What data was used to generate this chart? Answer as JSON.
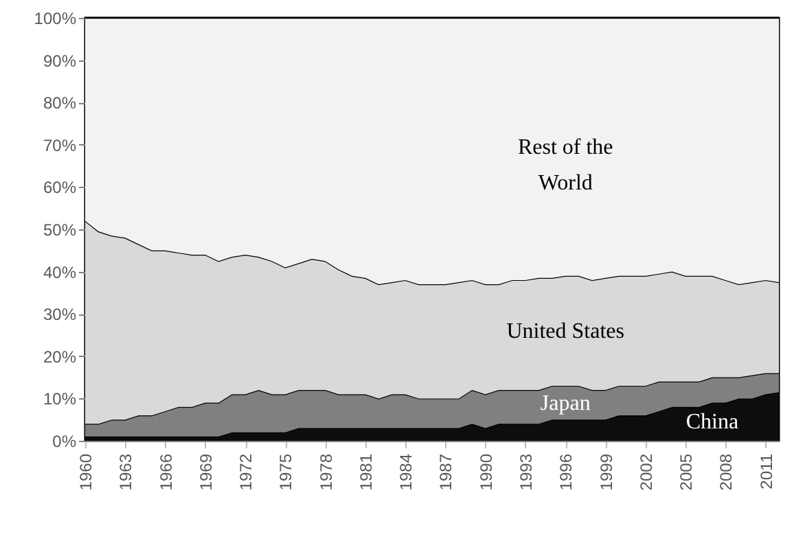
{
  "chart_data": {
    "type": "area",
    "stacked": true,
    "x": [
      1960,
      1961,
      1962,
      1963,
      1964,
      1965,
      1966,
      1967,
      1968,
      1969,
      1970,
      1971,
      1972,
      1973,
      1974,
      1975,
      1976,
      1977,
      1978,
      1979,
      1980,
      1981,
      1982,
      1983,
      1984,
      1985,
      1986,
      1987,
      1988,
      1989,
      1990,
      1991,
      1992,
      1993,
      1994,
      1995,
      1996,
      1997,
      1998,
      1999,
      2000,
      2001,
      2002,
      2003,
      2004,
      2005,
      2006,
      2007,
      2008,
      2009,
      2010,
      2011,
      2012
    ],
    "series": [
      {
        "name": "China",
        "color": "#0d0d0d",
        "values": [
          1,
          1,
          1,
          1,
          1,
          1,
          1,
          1,
          1,
          1,
          1,
          2,
          2,
          2,
          2,
          2,
          3,
          3,
          3,
          3,
          3,
          3,
          3,
          3,
          3,
          3,
          3,
          3,
          3,
          4,
          3,
          4,
          4,
          4,
          4,
          5,
          5,
          5,
          5,
          5,
          6,
          6,
          6,
          7,
          8,
          8,
          8,
          9,
          9,
          10,
          10,
          11,
          11.5
        ]
      },
      {
        "name": "Japan",
        "color": "#808080",
        "values": [
          3,
          3,
          4,
          4,
          5,
          5,
          6,
          7,
          7,
          8,
          8,
          9,
          9,
          10,
          9,
          9,
          9,
          9,
          9,
          8,
          8,
          8,
          7,
          8,
          8,
          7,
          7,
          7,
          7,
          8,
          8,
          8,
          8,
          8,
          8,
          8,
          8,
          8,
          7,
          7,
          7,
          7,
          7,
          7,
          6,
          6,
          6,
          6,
          6,
          5,
          5.5,
          5,
          4.5
        ]
      },
      {
        "name": "United States",
        "color": "#d9d9d9",
        "values": [
          48,
          45.5,
          43.5,
          43,
          40.5,
          39,
          38,
          36.5,
          36,
          35,
          33.5,
          32.5,
          33,
          31.5,
          31.5,
          30,
          30,
          31,
          30.5,
          29.5,
          28,
          27.5,
          27,
          26.5,
          27,
          27,
          27,
          27,
          27.5,
          26,
          26,
          25,
          26,
          26,
          26.5,
          25.5,
          26,
          26,
          26,
          26.5,
          26,
          26,
          26,
          25.5,
          26,
          25,
          25,
          24,
          23,
          22,
          22,
          22,
          21.5
        ]
      },
      {
        "name": "Rest of the World",
        "color": "#f2f2f2",
        "values": [
          48,
          50.5,
          51.5,
          52,
          53.5,
          55,
          55,
          55.5,
          56,
          56,
          57.5,
          56.5,
          56,
          56.5,
          57.5,
          59,
          58,
          57,
          57.5,
          59.5,
          61,
          61.5,
          63,
          62.5,
          62,
          63,
          63,
          63,
          62.5,
          62,
          63,
          63,
          62,
          62,
          61.5,
          61.5,
          61,
          61,
          62,
          61.5,
          61,
          61,
          61,
          60.5,
          60,
          61,
          61,
          61,
          62,
          63,
          62.5,
          62,
          62.5
        ]
      }
    ],
    "xlim": [
      1960,
      2012
    ],
    "xticks": [
      1960,
      1963,
      1966,
      1969,
      1972,
      1975,
      1978,
      1981,
      1984,
      1987,
      1990,
      1993,
      1996,
      1999,
      2002,
      2005,
      2008,
      2011
    ],
    "ylim": [
      0,
      100
    ],
    "yticks": [
      {
        "value": 0,
        "label": "0%"
      },
      {
        "value": 10,
        "label": "10%"
      },
      {
        "value": 20,
        "label": "20%"
      },
      {
        "value": 30,
        "label": "30%"
      },
      {
        "value": 40,
        "label": "40%"
      },
      {
        "value": 50,
        "label": "50%"
      },
      {
        "value": 60,
        "label": "60%"
      },
      {
        "value": 70,
        "label": "70%"
      },
      {
        "value": 80,
        "label": "80%"
      },
      {
        "value": 90,
        "label": "90%"
      },
      {
        "value": 100,
        "label": "100%"
      }
    ],
    "grid": false
  }
}
